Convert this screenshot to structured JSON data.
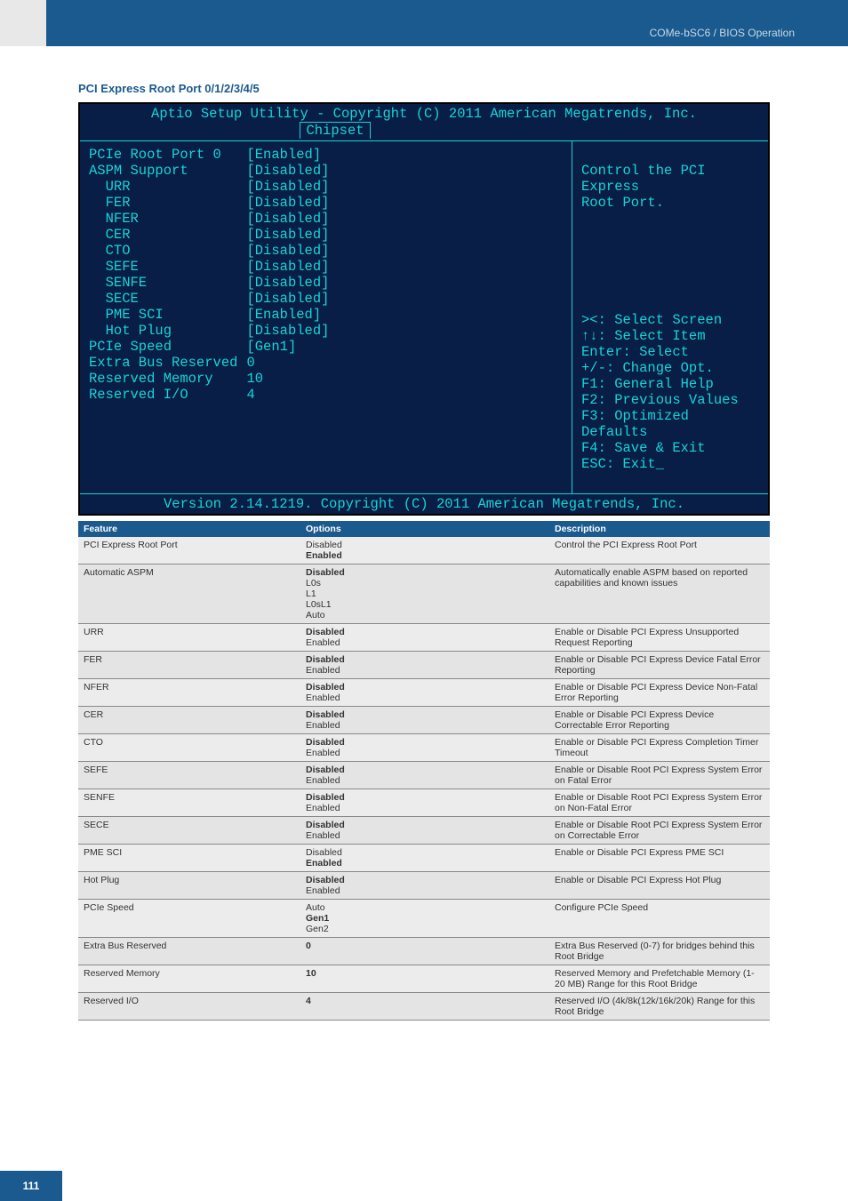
{
  "header": {
    "breadcrumb": "COMe-bSC6 / BIOS Operation"
  },
  "section_title": "PCI Express Root Port 0/1/2/3/4/5",
  "bios": {
    "title": "Aptio Setup Utility - Copyright (C) 2011 American Megatrends, Inc.",
    "tab": "Chipset",
    "labels": "PCIe Root Port 0\nASPM Support\n  URR\n  FER\n  NFER\n  CER\n  CTO\n  SEFE\n  SENFE\n  SECE\n  PME SCI\n  Hot Plug\nPCIe Speed\nExtra Bus Reserved\nReserved Memory\nReserved I/O",
    "values": "[Enabled]\n[Disabled]\n[Disabled]\n[Disabled]\n[Disabled]\n[Disabled]\n[Disabled]\n[Disabled]\n[Disabled]\n[Disabled]\n[Enabled]\n[Disabled]\n[Gen1]\n0\n10\n4",
    "help_top": "Control the PCI Express\nRoot Port.",
    "help_keys": "><: Select Screen\n↑↓: Select Item\nEnter: Select\n+/-: Change Opt.\nF1: General Help\nF2: Previous Values\nF3: Optimized Defaults\nF4: Save & Exit\nESC: Exit_",
    "footer": "Version 2.14.1219. Copyright (C) 2011 American Megatrends, Inc."
  },
  "table": {
    "headers": {
      "feature": "Feature",
      "options": "Options",
      "description": "Description"
    },
    "rows": [
      {
        "feature": "PCI Express Root Port",
        "options": [
          {
            "t": "Disabled"
          },
          {
            "t": "Enabled",
            "b": true
          }
        ],
        "desc": "Control the PCI Express Root Port"
      },
      {
        "feature": "Automatic ASPM",
        "options": [
          {
            "t": "Disabled",
            "b": true
          },
          {
            "t": "L0s"
          },
          {
            "t": "L1"
          },
          {
            "t": "L0sL1"
          },
          {
            "t": "Auto"
          }
        ],
        "desc": "Automatically enable ASPM based on reported capabilities and known issues"
      },
      {
        "feature": "URR",
        "options": [
          {
            "t": "Disabled",
            "b": true
          },
          {
            "t": "Enabled"
          }
        ],
        "desc": "Enable or Disable PCI Express Unsupported Request Reporting"
      },
      {
        "feature": "FER",
        "options": [
          {
            "t": "Disabled",
            "b": true
          },
          {
            "t": "Enabled"
          }
        ],
        "desc": "Enable or Disable PCI Express Device Fatal Error Reporting"
      },
      {
        "feature": "NFER",
        "options": [
          {
            "t": "Disabled",
            "b": true
          },
          {
            "t": "Enabled"
          }
        ],
        "desc": "Enable or Disable PCI Express Device Non-Fatal Error Reporting"
      },
      {
        "feature": "CER",
        "options": [
          {
            "t": "Disabled",
            "b": true
          },
          {
            "t": "Enabled"
          }
        ],
        "desc": "Enable or Disable PCI Express Device Correctable Error Reporting"
      },
      {
        "feature": "CTO",
        "options": [
          {
            "t": "Disabled",
            "b": true
          },
          {
            "t": "Enabled"
          }
        ],
        "desc": "Enable or Disable PCI Express Completion Timer Timeout"
      },
      {
        "feature": "SEFE",
        "options": [
          {
            "t": "Disabled",
            "b": true
          },
          {
            "t": "Enabled"
          }
        ],
        "desc": "Enable or Disable Root PCI Express System Error on Fatal Error"
      },
      {
        "feature": "SENFE",
        "options": [
          {
            "t": "Disabled",
            "b": true
          },
          {
            "t": "Enabled"
          }
        ],
        "desc": "Enable or Disable Root PCI Express System Error on Non-Fatal Error"
      },
      {
        "feature": "SECE",
        "options": [
          {
            "t": "Disabled",
            "b": true
          },
          {
            "t": "Enabled"
          }
        ],
        "desc": "Enable or Disable Root PCI Express System Error on Correctable Error"
      },
      {
        "feature": "PME SCI",
        "options": [
          {
            "t": "Disabled"
          },
          {
            "t": "Enabled",
            "b": true
          }
        ],
        "desc": "Enable or Disable PCI Express PME SCI"
      },
      {
        "feature": "Hot Plug",
        "options": [
          {
            "t": "Disabled",
            "b": true
          },
          {
            "t": "Enabled"
          }
        ],
        "desc": "Enable or Disable PCI Express Hot Plug"
      },
      {
        "feature": "PCIe Speed",
        "options": [
          {
            "t": "Auto"
          },
          {
            "t": "Gen1",
            "b": true
          },
          {
            "t": "Gen2"
          }
        ],
        "desc": "Configure PCIe Speed"
      },
      {
        "feature": "Extra Bus Reserved",
        "options": [
          {
            "t": "0",
            "b": true
          }
        ],
        "desc": "Extra Bus Reserved (0-7) for bridges behind this Root Bridge"
      },
      {
        "feature": "Reserved Memory",
        "options": [
          {
            "t": "10",
            "b": true
          }
        ],
        "desc": "Reserved Memory and Prefetchable Memory (1-20 MB) Range for this Root Bridge"
      },
      {
        "feature": "Reserved I/O",
        "options": [
          {
            "t": "4",
            "b": true
          }
        ],
        "desc": "Reserved I/O (4k/8k(12k/16k/20k) Range for this Root Bridge"
      }
    ]
  },
  "page_number": "111"
}
